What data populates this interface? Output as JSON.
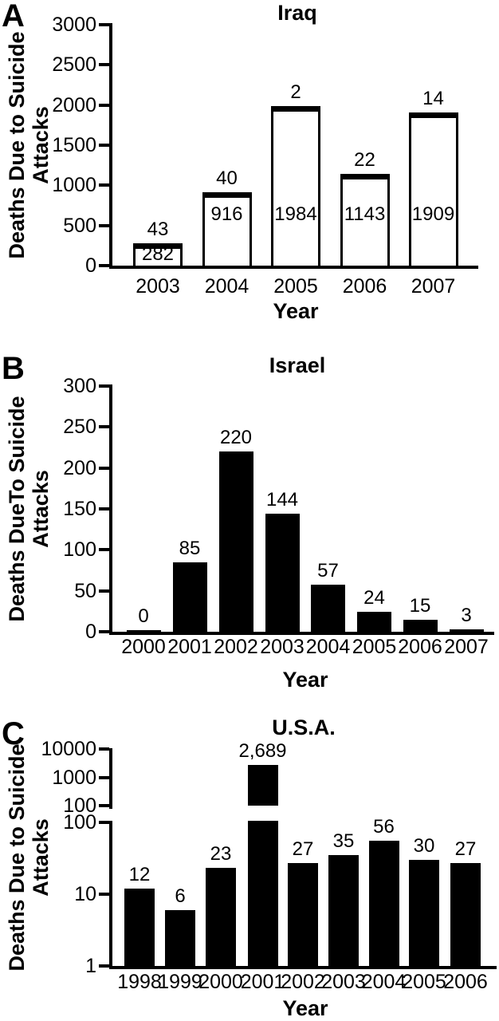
{
  "figure": {
    "background_color": "#ffffff",
    "ink_color": "#000000"
  },
  "charts": [
    {
      "panel_letter": "A",
      "title": "Iraq",
      "xlabel": "Year",
      "ylabel_lines": [
        "Deaths Due to Suicide",
        "Attacks"
      ],
      "chart_data": {
        "type": "bar",
        "scale": "linear",
        "categories": [
          "2003",
          "2004",
          "2005",
          "2006",
          "2007"
        ],
        "values": [
          282,
          916,
          1984,
          1143,
          1909
        ],
        "bar_top_labels": [
          "43",
          "40",
          "2",
          "22",
          "14"
        ],
        "bar_inside_labels": [
          "282",
          "916",
          "1984",
          "1143",
          "1909"
        ],
        "ylim": [
          0,
          3000
        ],
        "yticks": [
          "3000",
          "2500",
          "2000",
          "1500",
          "1000",
          "500",
          "0"
        ],
        "ytick_values": [
          3000,
          2500,
          2000,
          1500,
          1000,
          500,
          0
        ],
        "bar_fill": "#ffffff",
        "bar_border": "#000000",
        "grid": "off",
        "legend": "none"
      }
    },
    {
      "panel_letter": "B",
      "title": "Israel",
      "xlabel": "Year",
      "ylabel_lines": [
        "Deaths DueTo Suicide",
        "Attacks"
      ],
      "chart_data": {
        "type": "bar",
        "scale": "linear",
        "categories": [
          "2000",
          "2001",
          "2002",
          "2003",
          "2004",
          "2005",
          "2006",
          "2007"
        ],
        "values": [
          0,
          85,
          220,
          144,
          57,
          24,
          15,
          3
        ],
        "bar_top_labels": [
          "0",
          "85",
          "220",
          "144",
          "57",
          "24",
          "15",
          "3"
        ],
        "ylim": [
          0,
          300
        ],
        "yticks": [
          "300",
          "250",
          "200",
          "150",
          "100",
          "50",
          "0"
        ],
        "ytick_values": [
          300,
          250,
          200,
          150,
          100,
          50,
          0
        ],
        "bar_fill": "#000000",
        "bar_border": "#000000",
        "grid": "off",
        "legend": "none"
      }
    },
    {
      "panel_letter": "C",
      "title": "U.S.A.",
      "xlabel": "Year",
      "ylabel_lines": [
        "Deaths Due to Suicide",
        "Attacks"
      ],
      "chart_data": {
        "type": "bar",
        "scale": "log-broken-axis",
        "categories": [
          "1998",
          "1999",
          "2000",
          "2001",
          "2002",
          "2003",
          "2004",
          "2005",
          "2006"
        ],
        "values": [
          12,
          6,
          23,
          2689,
          27,
          35,
          56,
          30,
          27
        ],
        "bar_top_labels": [
          "12",
          "6",
          "23",
          "2,689",
          "27",
          "35",
          "56",
          "30",
          "27"
        ],
        "upper_axis": {
          "range": [
            100,
            10000
          ],
          "ticks": [
            "10000",
            "1000",
            "100"
          ],
          "tick_values": [
            10000,
            1000,
            100
          ]
        },
        "lower_axis": {
          "range": [
            1,
            100
          ],
          "ticks": [
            "100",
            "10",
            "1"
          ],
          "tick_values": [
            100,
            10,
            1
          ]
        },
        "bar_fill": "#000000",
        "bar_border": "#000000",
        "grid": "off",
        "legend": "none"
      }
    }
  ]
}
